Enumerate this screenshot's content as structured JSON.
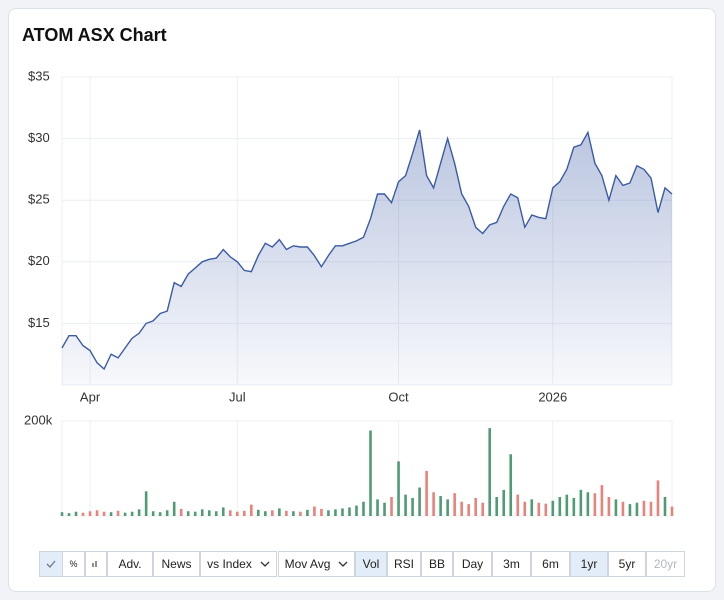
{
  "chart_data": [
    {
      "type": "line",
      "title": "ATOM ASX Chart",
      "categories": [
        null,
        null,
        null,
        null,
        "Apr",
        null,
        null,
        null,
        null,
        null,
        null,
        null,
        null,
        null,
        null,
        null,
        null,
        null,
        null,
        null,
        null,
        null,
        null,
        null,
        null,
        "Jul",
        null,
        null,
        null,
        null,
        null,
        null,
        null,
        null,
        null,
        null,
        null,
        null,
        null,
        null,
        null,
        null,
        null,
        null,
        null,
        null,
        null,
        null,
        "Oct",
        null,
        null,
        null,
        null,
        null,
        null,
        null,
        null,
        null,
        null,
        null,
        null,
        null,
        null,
        null,
        null,
        null,
        null,
        null,
        null,
        null,
        "2026",
        null,
        null,
        null,
        null,
        null,
        null,
        null,
        null,
        null,
        null,
        null,
        null,
        null,
        null,
        null,
        null,
        null
      ],
      "values": [
        13.0,
        14.0,
        14.0,
        13.2,
        12.8,
        11.8,
        11.3,
        12.5,
        12.2,
        13.0,
        13.8,
        14.2,
        15.0,
        15.2,
        15.8,
        16.0,
        18.3,
        18.0,
        19.0,
        19.5,
        20.0,
        20.2,
        20.3,
        21.0,
        20.4,
        20.0,
        19.3,
        19.2,
        20.5,
        21.5,
        21.2,
        21.8,
        21.0,
        21.3,
        21.2,
        21.2,
        20.5,
        19.6,
        20.5,
        21.3,
        21.3,
        21.5,
        21.7,
        22.0,
        23.5,
        25.5,
        25.5,
        24.8,
        26.5,
        27.0,
        28.8,
        30.7,
        27.0,
        26.0,
        28.0,
        30.0,
        28.0,
        25.5,
        24.5,
        22.8,
        22.3,
        23.0,
        23.2,
        24.5,
        25.5,
        25.2,
        22.8,
        23.8,
        23.6,
        23.5,
        26.0,
        26.5,
        27.5,
        29.3,
        29.5,
        30.5,
        28.0,
        27.0,
        25.0,
        27.0,
        26.2,
        26.4,
        27.8,
        27.5,
        26.8,
        24.0,
        26.0,
        25.5
      ],
      "color": "#3b5ba5",
      "area": true,
      "grid": true,
      "ylim": [
        10,
        35
      ],
      "yticks": [
        {
          "value": 15,
          "label": "$15"
        },
        {
          "value": 20,
          "label": "$20"
        },
        {
          "value": 25,
          "label": "$25"
        },
        {
          "value": 30,
          "label": "$30"
        },
        {
          "value": 35,
          "label": "$35"
        }
      ]
    },
    {
      "type": "bar",
      "values": [
        8000,
        6000,
        9000,
        7000,
        10000,
        12000,
        9000,
        8000,
        11000,
        7000,
        9000,
        14000,
        52000,
        10000,
        8000,
        12000,
        30000,
        15000,
        10000,
        9000,
        14000,
        12000,
        10000,
        18000,
        12000,
        9000,
        11000,
        24000,
        13000,
        10000,
        12000,
        16000,
        11000,
        10000,
        9000,
        13000,
        20000,
        15000,
        12000,
        14000,
        16000,
        18000,
        22000,
        30000,
        180000,
        35000,
        28000,
        40000,
        115000,
        45000,
        38000,
        60000,
        95000,
        50000,
        42000,
        35000,
        48000,
        30000,
        25000,
        38000,
        28000,
        185000,
        40000,
        55000,
        130000,
        45000,
        30000,
        35000,
        28000,
        26000,
        32000,
        40000,
        45000,
        38000,
        55000,
        50000,
        48000,
        65000,
        40000,
        35000,
        30000,
        25000,
        28000,
        32000,
        30000,
        75000,
        40000,
        20000
      ],
      "up_color": "#4f9b74",
      "down_color": "#e8837b",
      "grid": true,
      "ylim": [
        0,
        200000
      ],
      "yticks": [
        {
          "value": 200000,
          "label": "200k"
        }
      ]
    }
  ],
  "toolbar": {
    "buttons": [
      "%",
      "Adv.",
      "News",
      "vs Index",
      "Mov Avg",
      "Vol",
      "RSI",
      "BB",
      "Day",
      "3m",
      "6m",
      "1yr",
      "5yr",
      "20yr"
    ]
  }
}
